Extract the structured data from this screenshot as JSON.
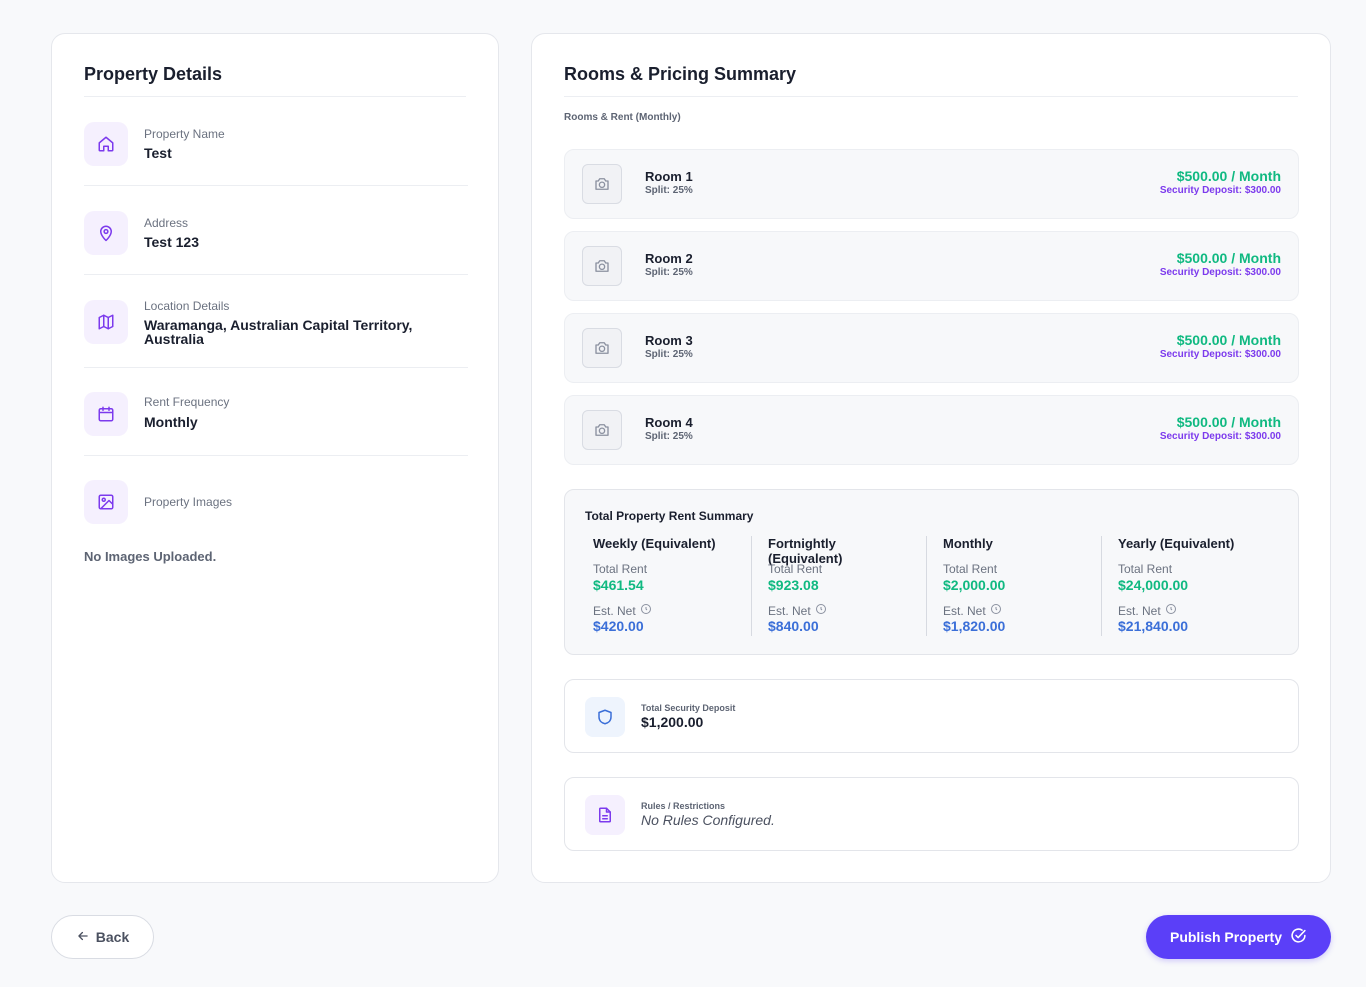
{
  "property_details": {
    "title": "Property Details",
    "fields": [
      {
        "label": "Property Name",
        "value": "Test",
        "icon": "home-icon"
      },
      {
        "label": "Address",
        "value": "Test 123",
        "icon": "map-pin-icon"
      },
      {
        "label": "Location Details",
        "value_line1": "Waramanga, Australian Capital Territory,",
        "value_line2": "Australia",
        "icon": "map-icon"
      },
      {
        "label": "Rent Frequency",
        "value": "Monthly",
        "icon": "calendar-icon"
      },
      {
        "label": "Property Images",
        "icon": "image-icon"
      }
    ],
    "no_images": "No Images Uploaded."
  },
  "rooms_summary": {
    "title": "Rooms & Pricing Summary",
    "sub_label": "Rooms & Rent (Monthly)",
    "rooms": [
      {
        "name": "Room 1",
        "split": "Split: 25%",
        "price": "$500.00 / Month",
        "deposit": "Security Deposit: $300.00"
      },
      {
        "name": "Room 2",
        "split": "Split: 25%",
        "price": "$500.00 / Month",
        "deposit": "Security Deposit: $300.00"
      },
      {
        "name": "Room 3",
        "split": "Split: 25%",
        "price": "$500.00 / Month",
        "deposit": "Security Deposit: $300.00"
      },
      {
        "name": "Room 4",
        "split": "Split: 25%",
        "price": "$500.00 / Month",
        "deposit": "Security Deposit: $300.00"
      }
    ],
    "total_summary": {
      "title": "Total Property Rent Summary",
      "columns": [
        {
          "title": "Weekly (Equivalent)",
          "total_label": "Total Rent",
          "total_value": "$461.54",
          "net_label": "Est. Net",
          "net_value": "$420.00"
        },
        {
          "title": "Fortnightly (Equivalent)",
          "total_label": "Total Rent",
          "total_value": "$923.08",
          "net_label": "Est. Net",
          "net_value": "$840.00"
        },
        {
          "title": "Monthly",
          "total_label": "Total Rent",
          "total_value": "$2,000.00",
          "net_label": "Est. Net",
          "net_value": "$1,820.00"
        },
        {
          "title": "Yearly (Equivalent)",
          "total_label": "Total Rent",
          "total_value": "$24,000.00",
          "net_label": "Est. Net",
          "net_value": "$21,840.00"
        }
      ]
    },
    "security_deposit": {
      "label": "Total Security Deposit",
      "value": "$1,200.00"
    },
    "rules": {
      "label": "Rules / Restrictions",
      "value": "No Rules Configured."
    }
  },
  "actions": {
    "back_label": "Back",
    "publish_label": "Publish Property"
  },
  "colors": {
    "accent": "#5b3ff8",
    "price_green": "#10b981",
    "deposit_purple": "#7c3aed",
    "net_blue": "#3b6fd8"
  }
}
